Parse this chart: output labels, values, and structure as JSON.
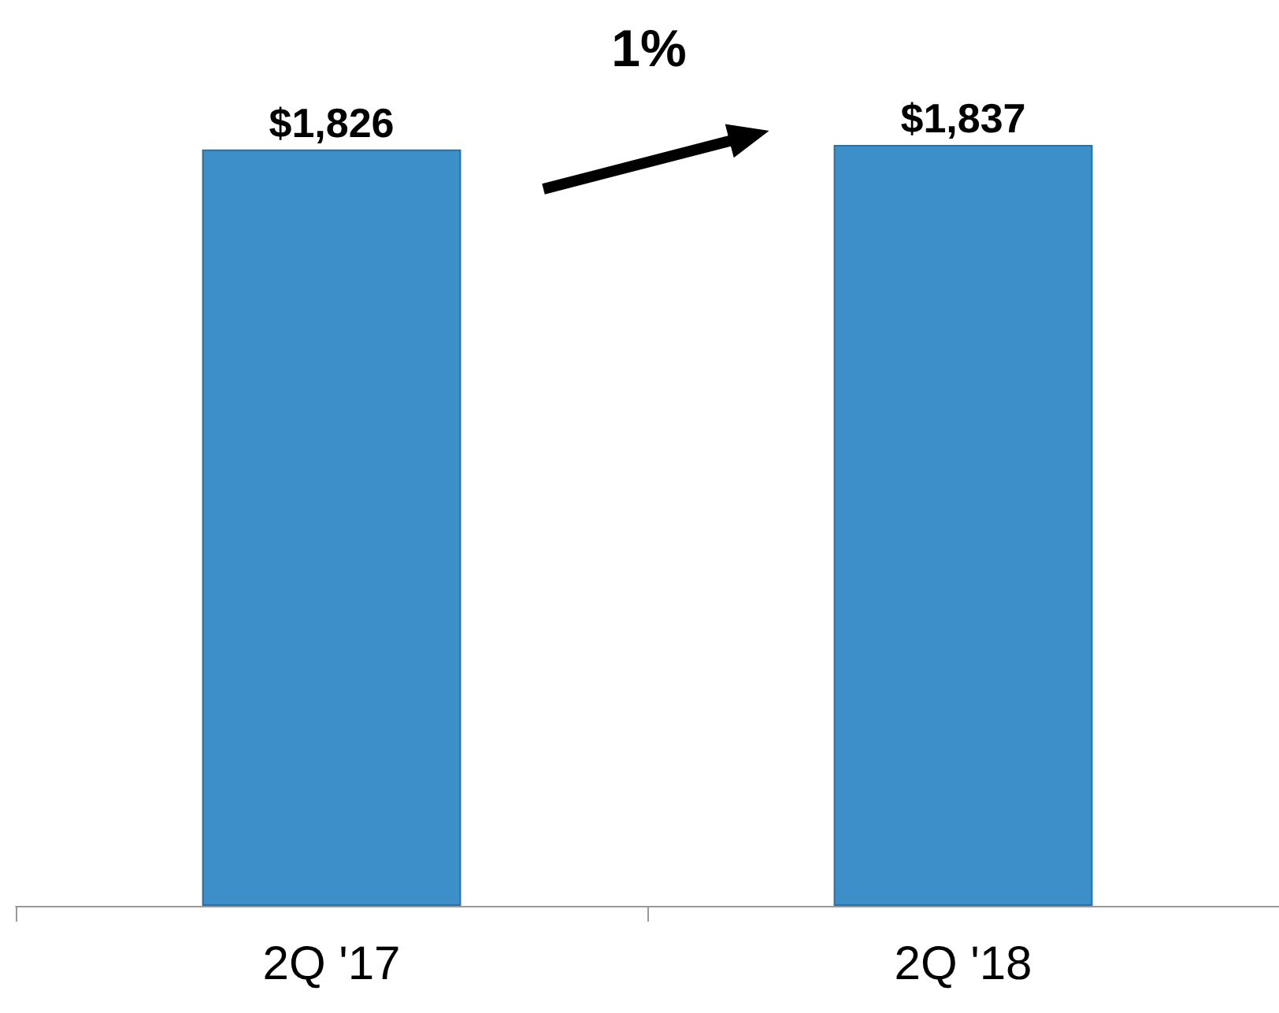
{
  "chart_data": {
    "type": "bar",
    "categories": [
      "2Q '17",
      "2Q '18"
    ],
    "values": [
      1826,
      1837
    ],
    "value_labels": [
      "$1,826",
      "$1,837"
    ],
    "color": "#3d8fca",
    "annotations": [
      "1%"
    ]
  }
}
